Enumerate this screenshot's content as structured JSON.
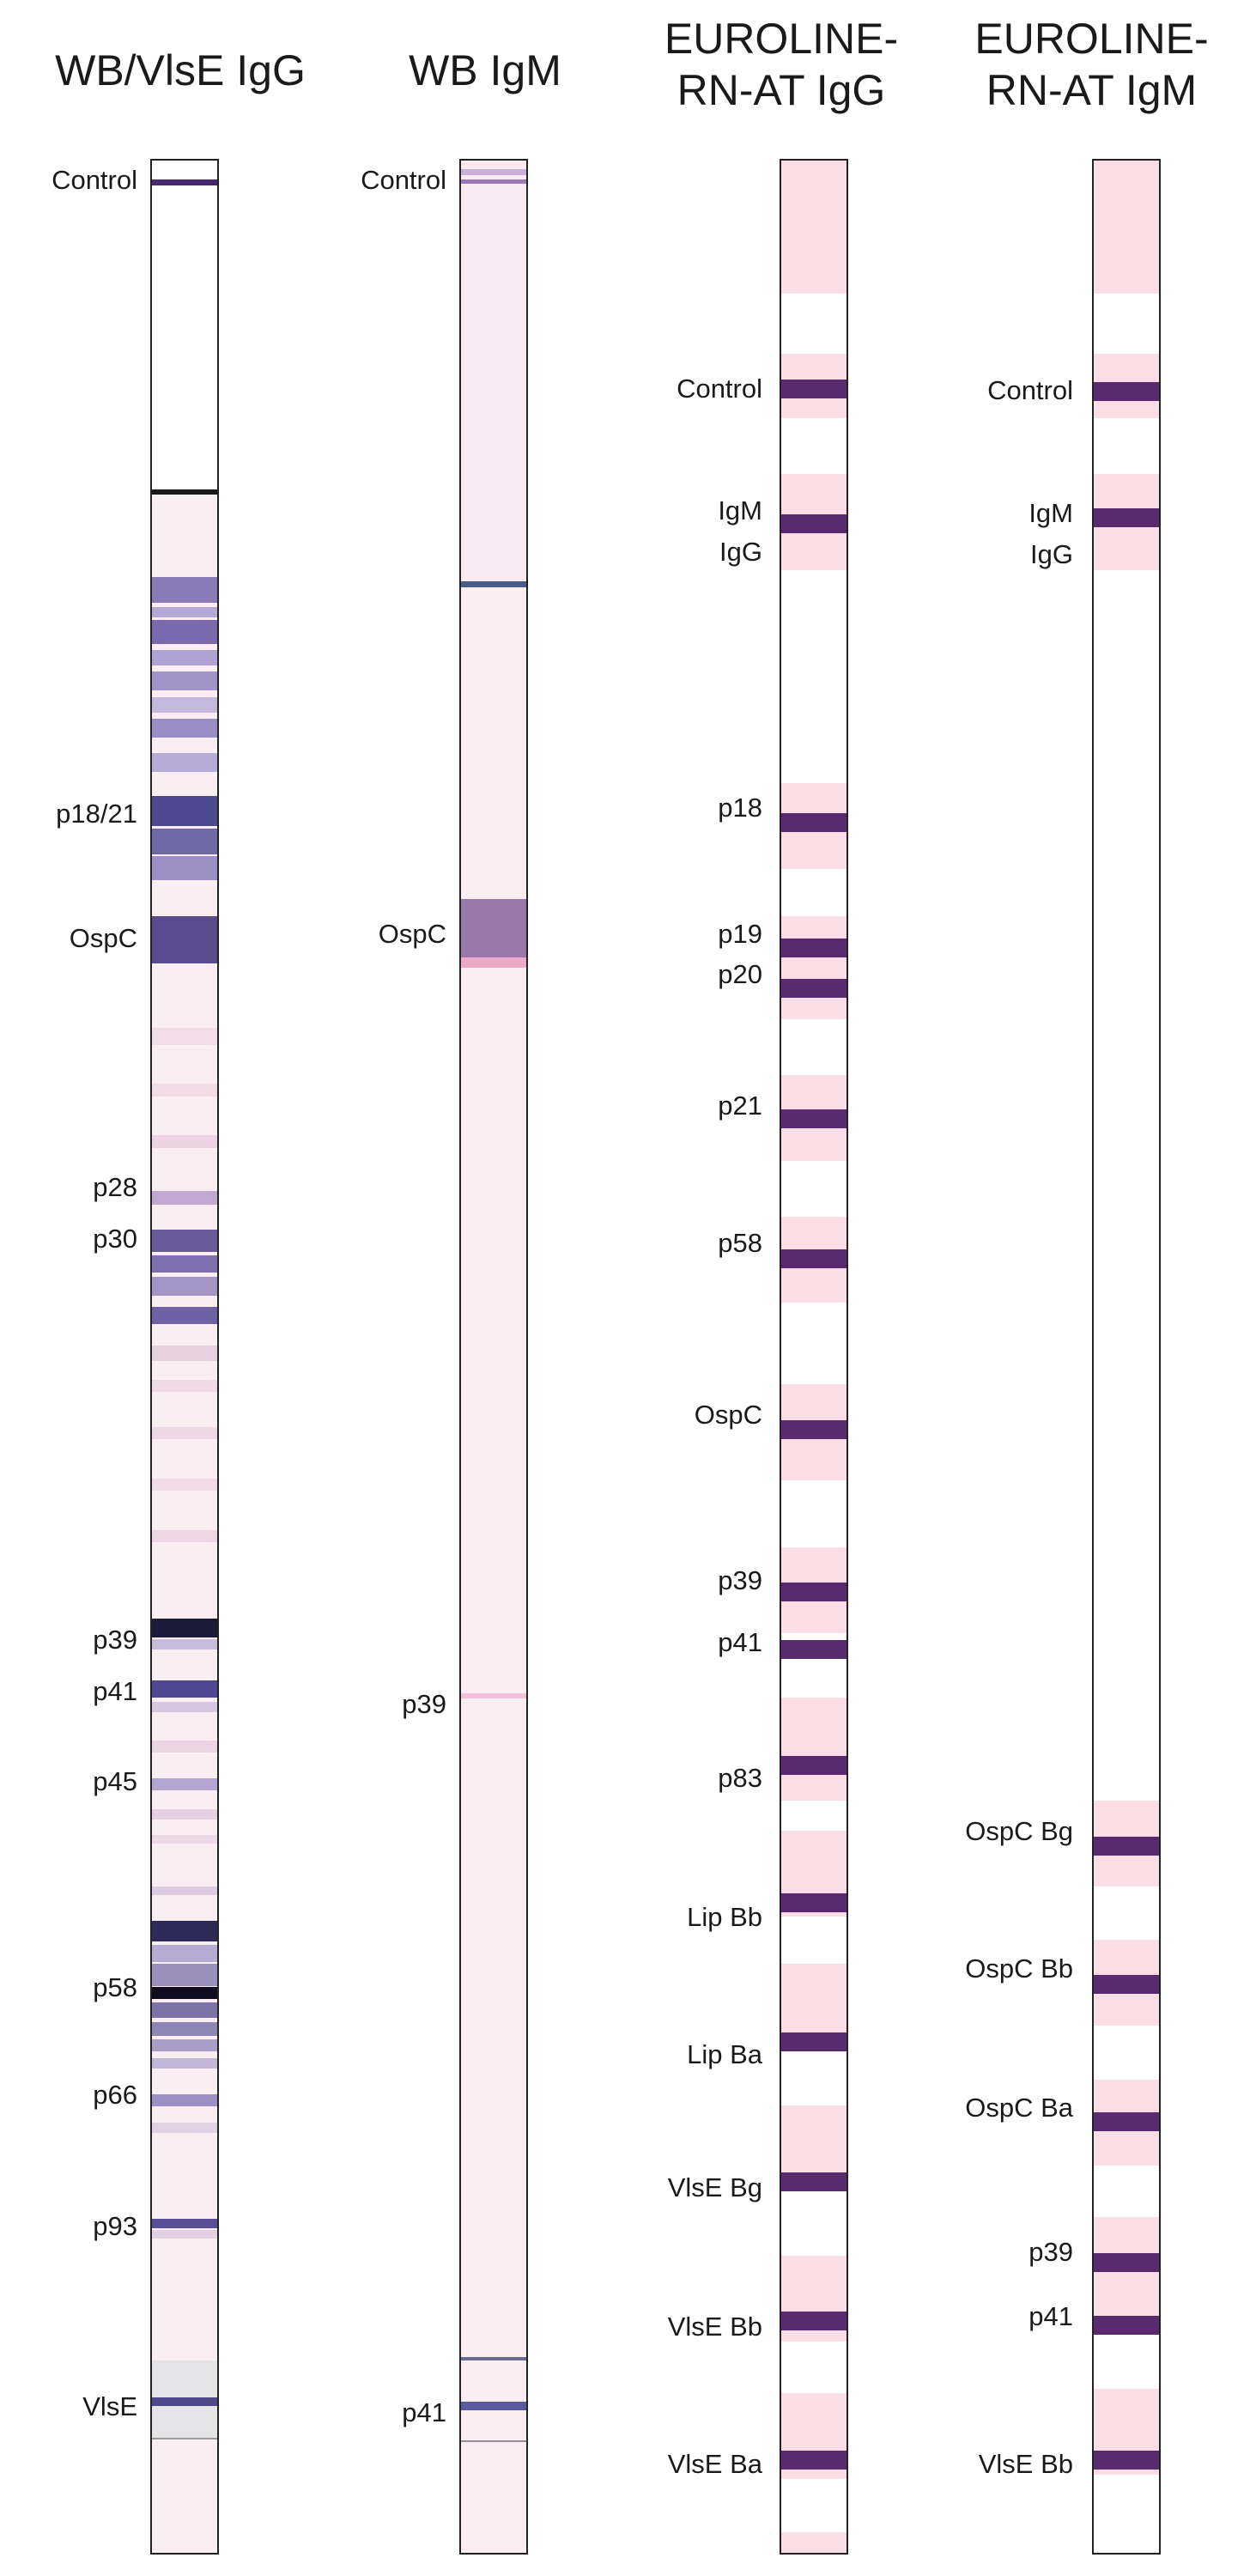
{
  "columns": {
    "wb_vlse_igg": {
      "title": "WB/VlsE IgG"
    },
    "wb_igm": {
      "title": "WB IgM"
    },
    "euroline_igg": {
      "title": "EUROLINE-\nRN-AT IgG"
    },
    "euroline_igm": {
      "title": "EUROLINE-\nRN-AT IgM"
    }
  },
  "labels": {
    "wb_vlse_igg": [
      "Control",
      "p18/21",
      "OspC",
      "p28",
      "p30",
      "p39",
      "p41",
      "p45",
      "p58",
      "p66",
      "p93",
      "VlsE"
    ],
    "wb_igm": [
      "Control",
      "OspC",
      "p39",
      "p41"
    ],
    "euroline_igg": [
      "Control",
      "IgM",
      "IgG",
      "p18",
      "p19",
      "p20",
      "p21",
      "p58",
      "OspC",
      "p39",
      "p41",
      "p83",
      "Lip Bb",
      "Lip Ba",
      "VlsE Bg",
      "VlsE Bb",
      "VlsE Ba"
    ],
    "euroline_igm": [
      "Control",
      "IgM",
      "IgG",
      "OspC Bg",
      "OspC Bb",
      "OspC Ba",
      "p39",
      "p41",
      "VlsE Bb"
    ]
  },
  "colors": {
    "strip_pink": "#fbeef3",
    "reaction_zone": "#fbdde6",
    "band_purple": "#5a2a6e",
    "band_blue": "#3b3f85",
    "band_dark": "#14122a",
    "border": "#222222"
  }
}
